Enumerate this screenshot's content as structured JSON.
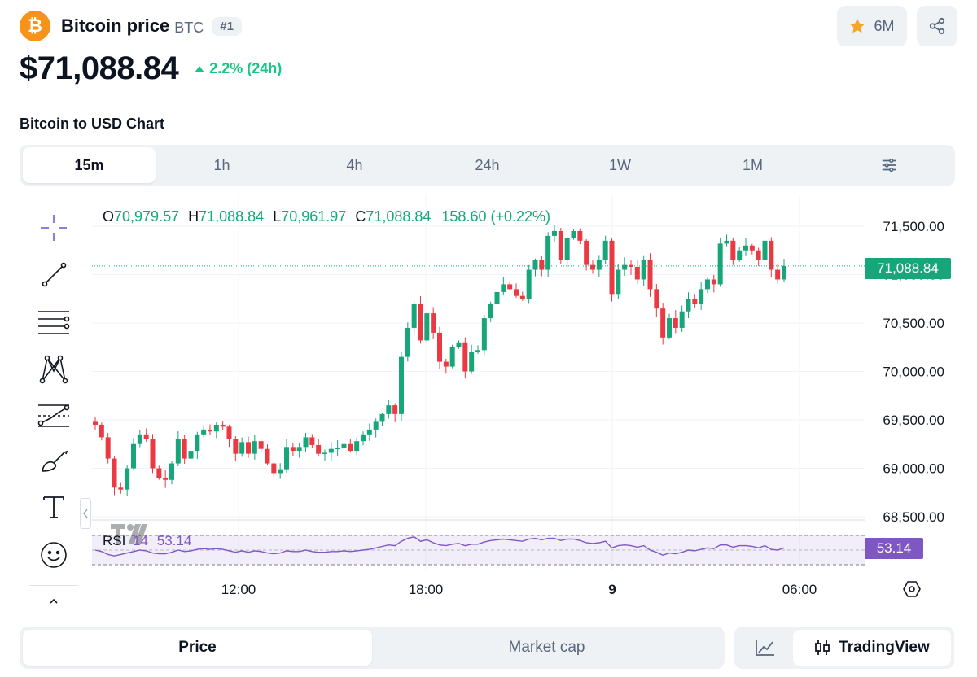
{
  "header": {
    "logo_glyph": "₿",
    "name": "Bitcoin price",
    "symbol": "BTC",
    "rank": "#1",
    "watchlist_count": "6M",
    "icons": [
      "bitcoin-logo",
      "star-icon",
      "share-icon"
    ]
  },
  "price": {
    "value": "$71,088.84",
    "change": "2.2% (24h)",
    "direction": "up"
  },
  "chart_title": "Bitcoin to USD Chart",
  "timeframes": [
    {
      "label": "15m",
      "active": true
    },
    {
      "label": "1h",
      "active": false
    },
    {
      "label": "4h",
      "active": false
    },
    {
      "label": "24h",
      "active": false
    },
    {
      "label": "1W",
      "active": false
    },
    {
      "label": "1M",
      "active": false
    }
  ],
  "tools": [
    "crosshair-icon",
    "trend-line-icon",
    "fib-levels-icon",
    "pattern-icon",
    "projection-icon",
    "brush-icon",
    "text-icon",
    "emoji-icon"
  ],
  "ohlc": {
    "o_label": "O",
    "o": "70,979.57",
    "h_label": "H",
    "h": "71,088.84",
    "l_label": "L",
    "l": "70,961.97",
    "c_label": "C",
    "c": "71,088.84",
    "change": "158.60 (+0.22%)"
  },
  "last_price_tag": "71,088.84",
  "rsi": {
    "name": "RSI",
    "period": "14",
    "value": "53.14"
  },
  "bottom": {
    "price_tab": "Price",
    "market_cap_tab": "Market cap",
    "tradingview_label": "TradingView"
  },
  "colors": {
    "up": "#16a67a",
    "down": "#ea3943",
    "rsi": "#7e57c2",
    "accent_up_text": "#16c784",
    "bitcoin": "#f7931a"
  },
  "chart_data": {
    "type": "candlestick",
    "y_ticks": [
      "71,500.00",
      "71,000.00",
      "70,500.00",
      "70,000.00",
      "69,500.00",
      "69,000.00",
      "68,500.00"
    ],
    "x_ticks": [
      "12:00",
      "18:00",
      "9",
      "06:00"
    ],
    "ylim": [
      68500,
      71500
    ],
    "closes": [
      69450,
      69320,
      69100,
      68800,
      68780,
      69000,
      69250,
      69350,
      69300,
      69000,
      68900,
      68880,
      69050,
      69300,
      69100,
      69180,
      69350,
      69400,
      69380,
      69450,
      69430,
      69300,
      69150,
      69270,
      69150,
      69280,
      69200,
      69050,
      68950,
      68990,
      69220,
      69180,
      69220,
      69320,
      69240,
      69150,
      69160,
      69200,
      69210,
      69250,
      69180,
      69280,
      69350,
      69400,
      69480,
      69560,
      69650,
      69560,
      70150,
      70450,
      70700,
      70320,
      70600,
      70400,
      70100,
      70050,
      70250,
      70300,
      70000,
      70200,
      70220,
      70550,
      70700,
      70820,
      70900,
      70850,
      70780,
      70750,
      71050,
      71150,
      71050,
      71400,
      71450,
      71150,
      71380,
      71450,
      71350,
      71100,
      71050,
      71150,
      71350,
      70800,
      71050,
      71100,
      71080,
      70950,
      71150,
      70850,
      70650,
      70350,
      70550,
      70450,
      70620,
      70750,
      70700,
      70850,
      70950,
      70900,
      71320,
      71350,
      71150,
      71250,
      71300,
      71250,
      71150,
      71350,
      71050,
      70950,
      71090
    ],
    "rsi_values": [
      50,
      48,
      44,
      42,
      44,
      46,
      48,
      50,
      49,
      46,
      45,
      45,
      47,
      50,
      48,
      49,
      51,
      52,
      51,
      52,
      51,
      49,
      47,
      49,
      47,
      49,
      48,
      46,
      45,
      46,
      49,
      48,
      48,
      50,
      48,
      47,
      47,
      48,
      48,
      49,
      48,
      49,
      50,
      51,
      53,
      55,
      57,
      56,
      62,
      66,
      68,
      62,
      64,
      60,
      57,
      56,
      58,
      59,
      56,
      58,
      58,
      61,
      63,
      64,
      65,
      64,
      63,
      62,
      65,
      66,
      64,
      66,
      66,
      63,
      65,
      65,
      63,
      60,
      59,
      60,
      62,
      53,
      56,
      57,
      56,
      54,
      56,
      50,
      47,
      43,
      46,
      45,
      47,
      50,
      49,
      51,
      53,
      52,
      57,
      57,
      54,
      56,
      56,
      55,
      53,
      56,
      51,
      50,
      53
    ]
  }
}
